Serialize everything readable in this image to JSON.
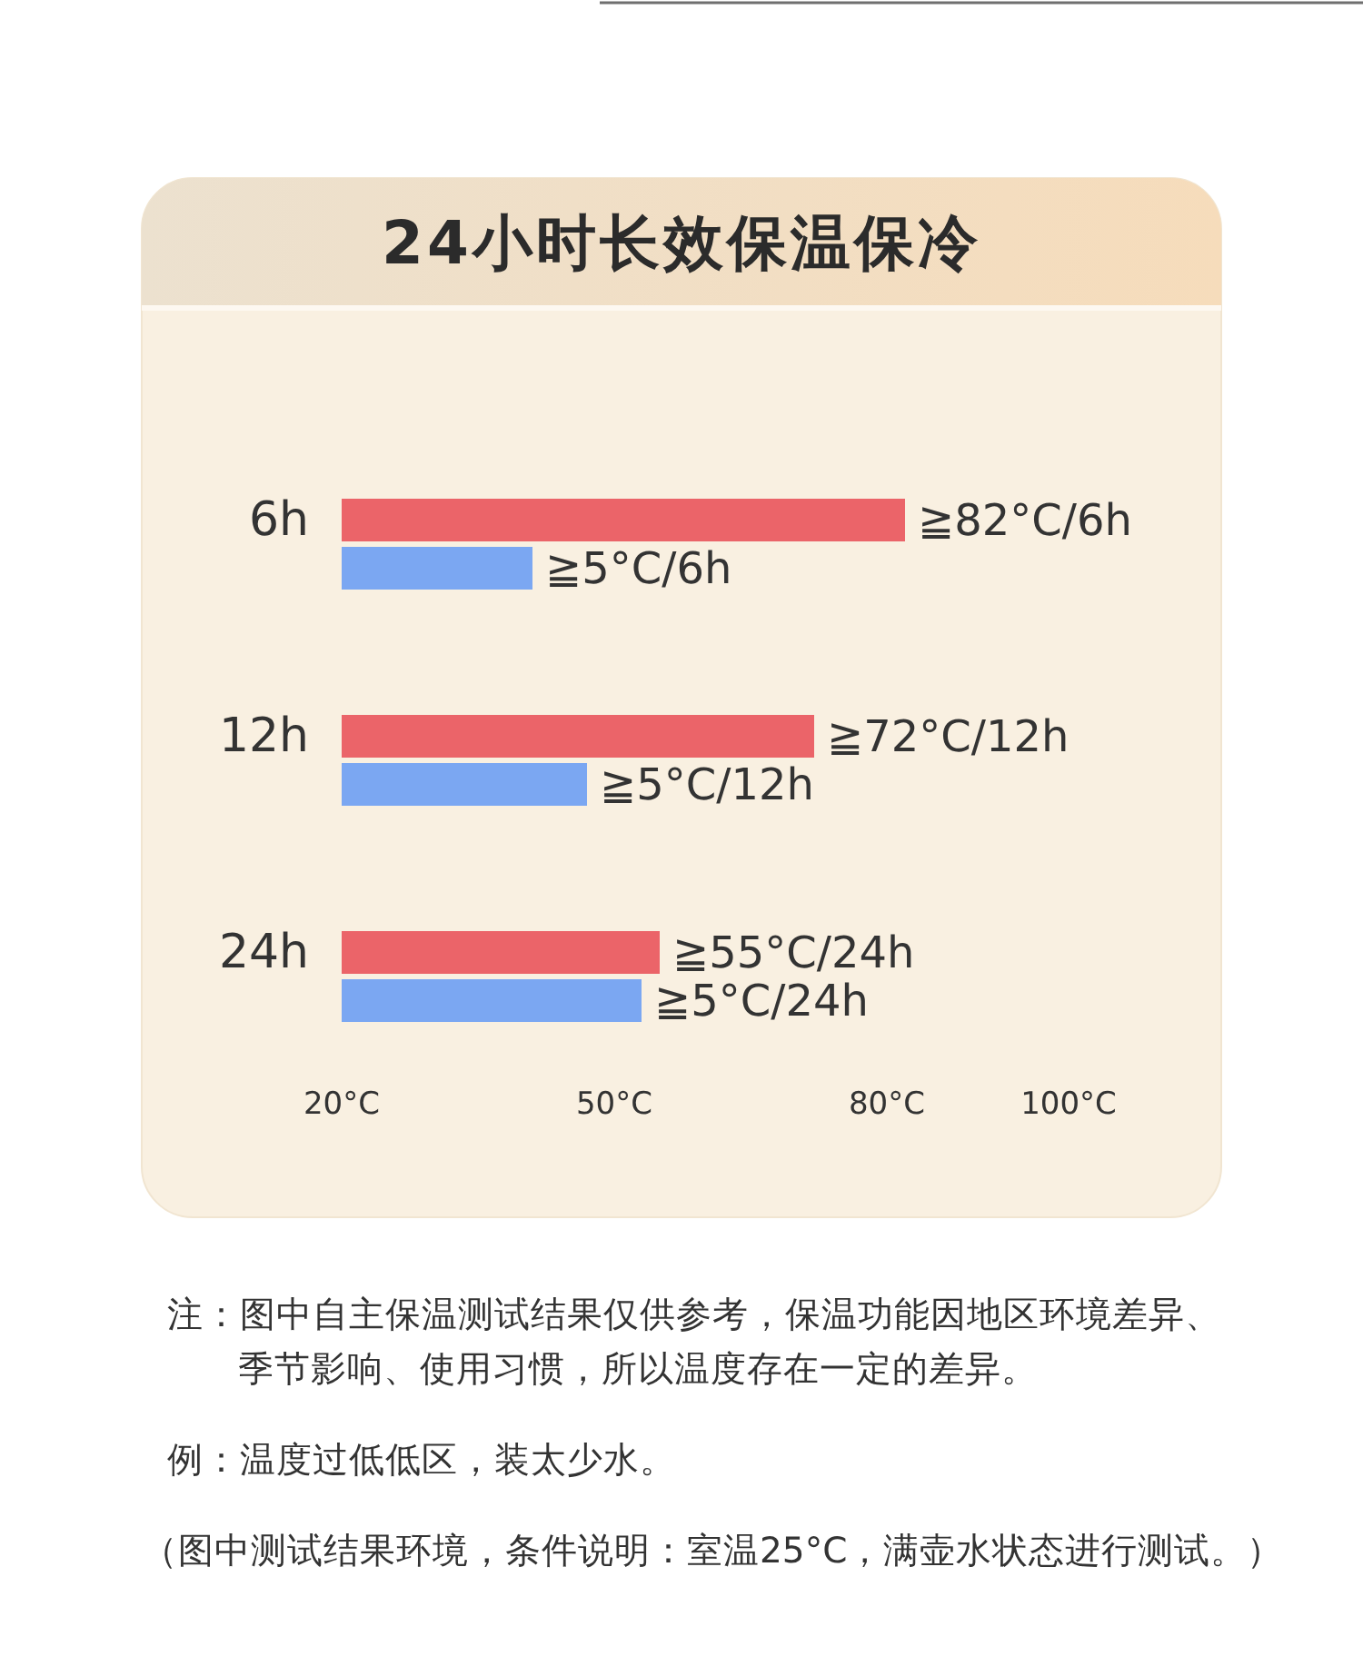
{
  "chart_data": {
    "type": "bar",
    "orientation": "horizontal",
    "title": "24小时长效保温保冷",
    "categories": [
      "6h",
      "12h",
      "24h"
    ],
    "series": [
      {
        "color": "#eb6469",
        "values": [
          82,
          72,
          55
        ],
        "value_labels": [
          "≧82°C/6h",
          "≧72°C/12h",
          "≧55°C/24h"
        ]
      },
      {
        "color": "#7ba7f2",
        "values": [
          41,
          47,
          53
        ],
        "value_labels": [
          "≧5°C/6h",
          "≧5°C/12h",
          "≧5°C/24h"
        ]
      }
    ],
    "xlim": [
      20,
      100
    ],
    "xticks": [
      {
        "value": 20,
        "label": "20°C"
      },
      {
        "value": 50,
        "label": "50°C"
      },
      {
        "value": 80,
        "label": "80°C"
      },
      {
        "value": 100,
        "label": "100°C"
      }
    ],
    "annotations": [
      "注：图中自主保温测试结果仅供参考，保温功能因地区环境差异、季节影响、使用习惯，所以温度存在一定的差异。",
      "例：温度过低低区，装太少水。",
      "（图中测试结果环境，条件说明：室温25°C，满壶水状态进行测试。）"
    ]
  }
}
